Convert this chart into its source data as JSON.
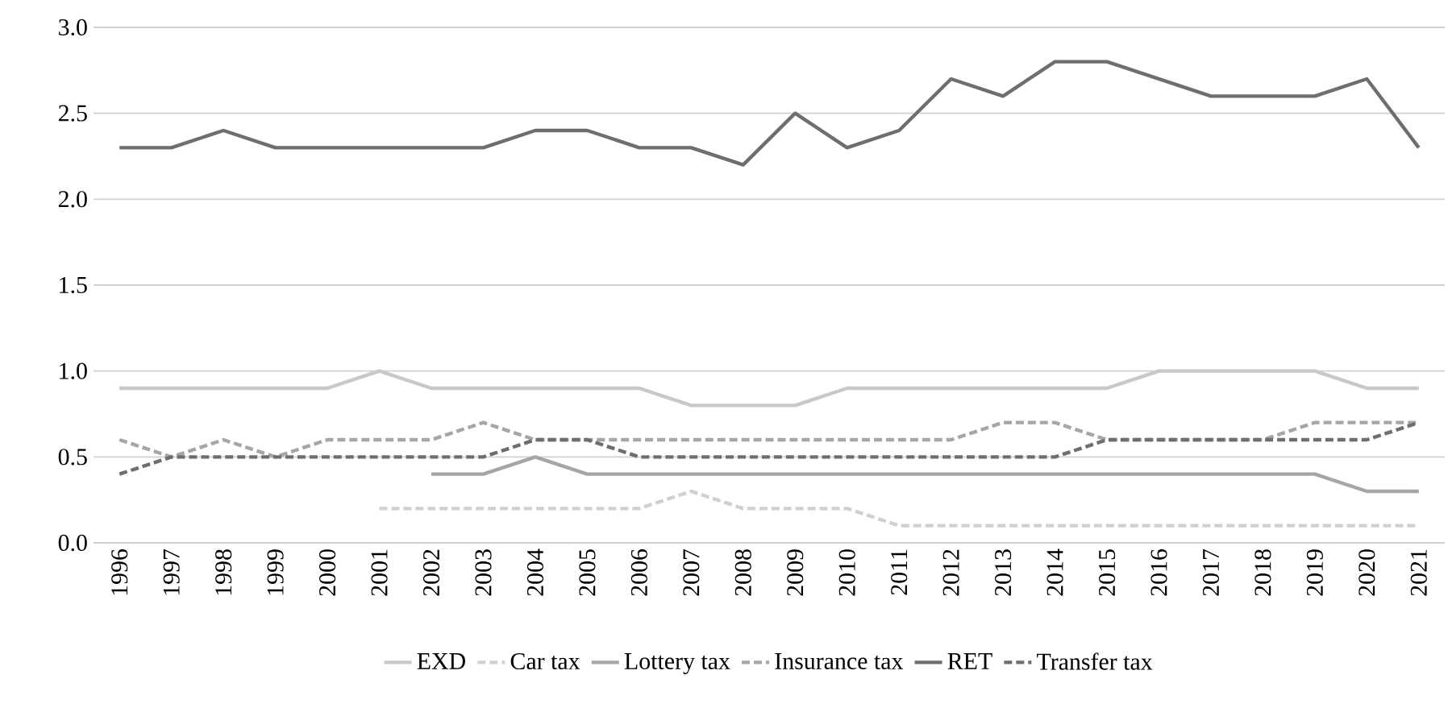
{
  "chart_data": {
    "type": "line",
    "categories": [
      "1996",
      "1997",
      "1998",
      "1999",
      "2000",
      "2001",
      "2002",
      "2003",
      "2004",
      "2005",
      "2006",
      "2007",
      "2008",
      "2009",
      "2010",
      "2011",
      "2012",
      "2013",
      "2014",
      "2015",
      "2016",
      "2017",
      "2018",
      "2019",
      "2020",
      "2021"
    ],
    "series": [
      {
        "name": "EXD",
        "color": "#c8c8c8",
        "line_style": "solid",
        "values": [
          0.9,
          0.9,
          0.9,
          0.9,
          0.9,
          1.0,
          0.9,
          0.9,
          0.9,
          0.9,
          0.9,
          0.8,
          0.8,
          0.8,
          0.9,
          0.9,
          0.9,
          0.9,
          0.9,
          0.9,
          1.0,
          1.0,
          1.0,
          1.0,
          0.9,
          0.9
        ]
      },
      {
        "name": "Car tax",
        "color": "#d0d0d0",
        "line_style": "dashed",
        "values": [
          null,
          null,
          null,
          null,
          null,
          0.2,
          0.2,
          0.2,
          0.2,
          0.2,
          0.2,
          0.3,
          0.2,
          0.2,
          0.2,
          0.1,
          0.1,
          0.1,
          0.1,
          0.1,
          0.1,
          0.1,
          0.1,
          0.1,
          0.1,
          0.1
        ]
      },
      {
        "name": "Lottery tax",
        "color": "#a6a6a6",
        "line_style": "solid",
        "values": [
          null,
          null,
          null,
          null,
          null,
          null,
          0.4,
          0.4,
          0.5,
          0.4,
          0.4,
          0.4,
          0.4,
          0.4,
          0.4,
          0.4,
          0.4,
          0.4,
          0.4,
          0.4,
          0.4,
          0.4,
          0.4,
          0.4,
          0.3,
          0.3
        ]
      },
      {
        "name": "Insurance tax",
        "color": "#a6a6a6",
        "line_style": "dashed",
        "values": [
          0.6,
          0.5,
          0.6,
          0.5,
          0.6,
          0.6,
          0.6,
          0.7,
          0.6,
          0.6,
          0.6,
          0.6,
          0.6,
          0.6,
          0.6,
          0.6,
          0.6,
          0.7,
          0.7,
          0.6,
          0.6,
          0.6,
          0.6,
          0.7,
          0.7,
          0.7
        ]
      },
      {
        "name": "RET",
        "color": "#6e6e6e",
        "line_style": "solid",
        "values": [
          2.3,
          2.3,
          2.4,
          2.3,
          2.3,
          2.3,
          2.3,
          2.3,
          2.4,
          2.4,
          2.3,
          2.3,
          2.2,
          2.5,
          2.3,
          2.4,
          2.7,
          2.6,
          2.8,
          2.8,
          2.7,
          2.6,
          2.6,
          2.6,
          2.7,
          2.3
        ]
      },
      {
        "name": "Transfer tax",
        "color": "#6e6e6e",
        "line_style": "dashed",
        "values": [
          0.4,
          0.5,
          0.5,
          0.5,
          0.5,
          0.5,
          0.5,
          0.5,
          0.6,
          0.6,
          0.5,
          0.5,
          0.5,
          0.5,
          0.5,
          0.5,
          0.5,
          0.5,
          0.5,
          0.6,
          0.6,
          0.6,
          0.6,
          0.6,
          0.6,
          0.7
        ]
      }
    ],
    "ylim": [
      0,
      3
    ],
    "yticks": [
      {
        "value": 0,
        "label": "0.0"
      },
      {
        "value": 0.5,
        "label": "0.5"
      },
      {
        "value": 1,
        "label": "1.0"
      },
      {
        "value": 1.5,
        "label": "1.5"
      },
      {
        "value": 2,
        "label": "2.0"
      },
      {
        "value": 2.5,
        "label": "2.5"
      },
      {
        "value": 3,
        "label": "3.0"
      }
    ],
    "grid": "y",
    "legend": "bottom",
    "marker": "none"
  }
}
